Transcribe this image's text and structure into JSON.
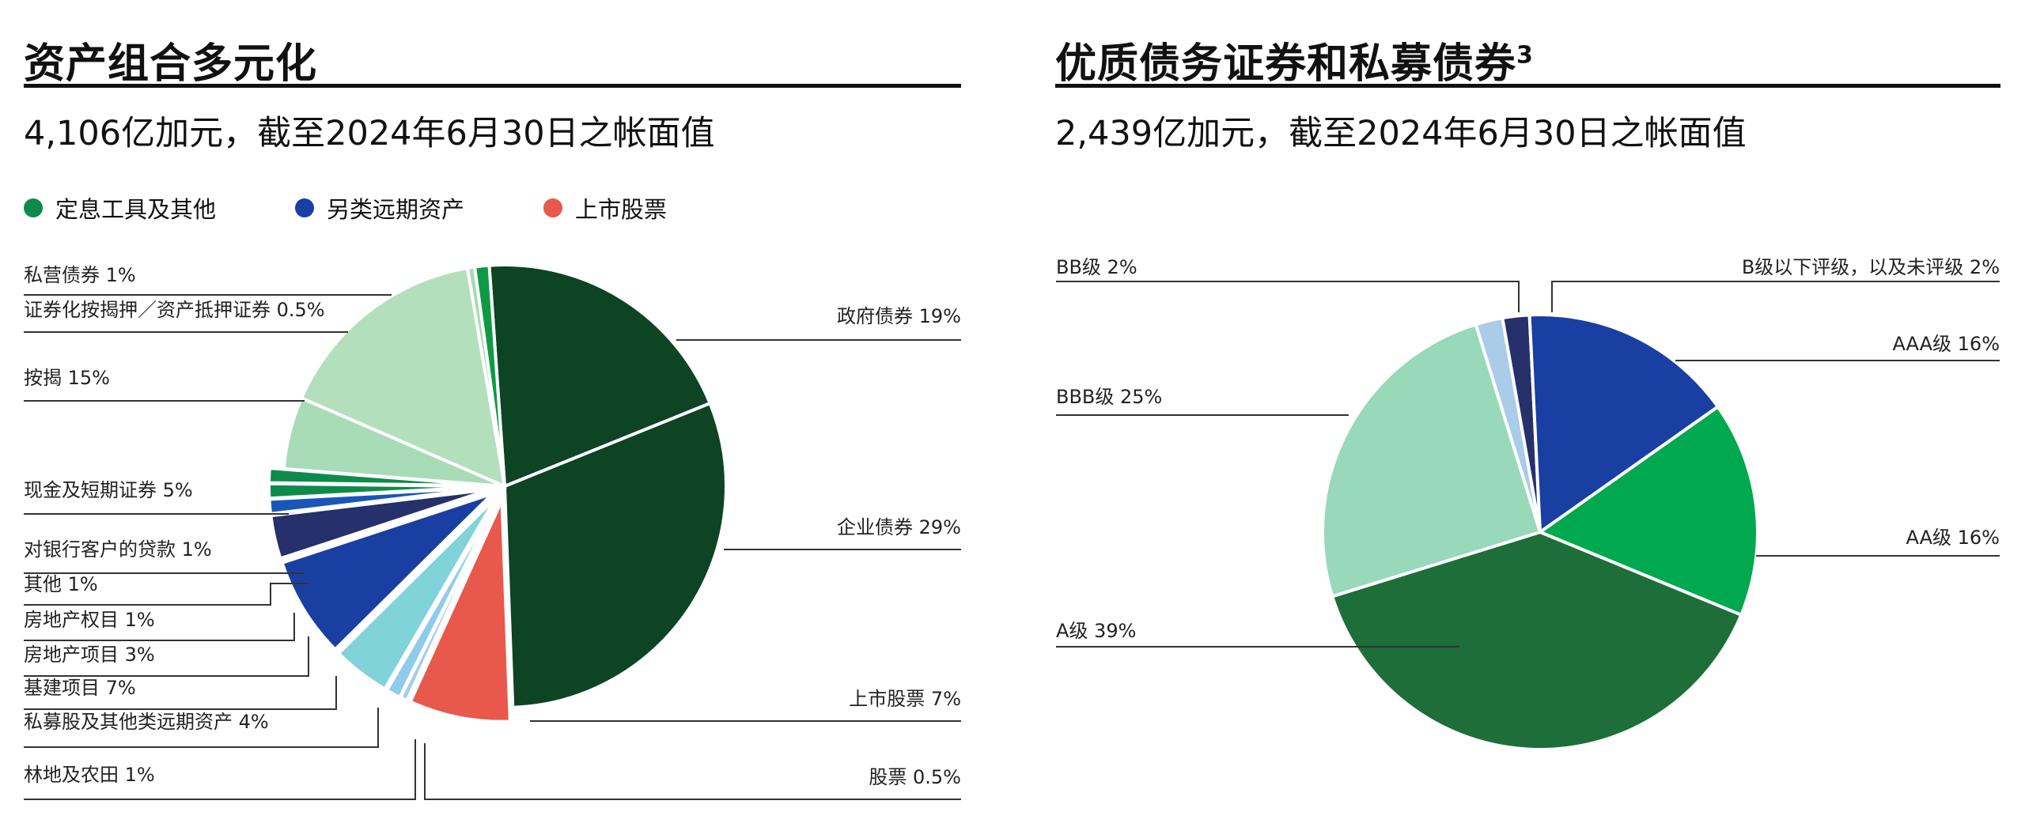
{
  "colors": {
    "legend_fixed_income": "#0e8a4a",
    "legend_alternative": "#1a3fa3",
    "legend_equities": "#e8584b"
  },
  "left": {
    "title": "资产组合多元化",
    "subtitle": "4,106亿加元，截至2024年6月30日之帐面值",
    "legend": [
      {
        "label": "定息工具及其他",
        "color": "#0e8a4a"
      },
      {
        "label": "另类远期资产",
        "color": "#1a3fa3"
      },
      {
        "label": "上市股票",
        "color": "#e8584b"
      }
    ]
  },
  "right": {
    "title": "优质债务证券和私募债券",
    "title_sup": "3",
    "subtitle": "2,439亿加元，截至2024年6月30日之帐面值"
  },
  "chart_data": [
    {
      "type": "pie",
      "title": "资产组合多元化",
      "slices": [
        {
          "label": "政府债券 19%",
          "value": 19,
          "color": "#0d4423"
        },
        {
          "label": "企业债券 29%",
          "value": 29,
          "color": "#0d4423"
        },
        {
          "label": "上市股票 7%",
          "value": 7,
          "color": "#e8584b"
        },
        {
          "label": "股票 0.5%",
          "value": 0.5,
          "color": "#a9cce8"
        },
        {
          "label": "林地及农田 1%",
          "value": 1,
          "color": "#8ecdea"
        },
        {
          "label": "私募股及其他类远期资产 4%",
          "value": 4,
          "color": "#7fd3d9"
        },
        {
          "label": "基建项目 7%",
          "value": 7,
          "color": "#1a3fa3"
        },
        {
          "label": "房地产项目 3%",
          "value": 3,
          "color": "#26306b"
        },
        {
          "label": "房地产权目 1%",
          "value": 1,
          "color": "#1a56b8"
        },
        {
          "label": "其他 1%",
          "value": 1,
          "color": "#0e8a4a"
        },
        {
          "label": "对银行客户的贷款 1%",
          "value": 1,
          "color": "#0e8a4a"
        },
        {
          "label": "现金及短期证券 5%",
          "value": 5,
          "color": "#a8dcb8"
        },
        {
          "label": "按揭 15%",
          "value": 15,
          "color": "#b4dfbd"
        },
        {
          "label": "证券化按揭押／资产抵押证券 0.5%",
          "value": 0.5,
          "color": "#a8d9b5"
        },
        {
          "label": "私营债券 1%",
          "value": 1,
          "color": "#0e9a45"
        }
      ],
      "annotations": [
        "政府债券 19%",
        "企业债券 29%",
        "上市股票 7%",
        "股票 0.5%",
        "私营债券 1%",
        "证券化按揭押／资产抵押证券 0.5%",
        "按揭 15%",
        "现金及短期证券 5%",
        "对银行客户的贷款 1%",
        "其他 1%",
        "房地产权目 1%",
        "房地产项目 3%",
        "基建项目 7%",
        "私募股及其他类远期资产 4%",
        "林地及农田 1%"
      ]
    },
    {
      "type": "pie",
      "title": "优质债务证券和私募债券",
      "slices": [
        {
          "label": "B级以下评级，以及未评级 2%",
          "value": 2,
          "color": "#26306b"
        },
        {
          "label": "AAA级 16%",
          "value": 16,
          "color": "#1a3fa3"
        },
        {
          "label": "AA级 16%",
          "value": 16,
          "color": "#00a84f"
        },
        {
          "label": "A级 39%",
          "value": 39,
          "color": "#1e6e3a"
        },
        {
          "label": "BBB级 25%",
          "value": 25,
          "color": "#97d9b8"
        },
        {
          "label": "BB级 2%",
          "value": 2,
          "color": "#a9cce8"
        }
      ],
      "annotations": [
        "BB级 2%",
        "B级以下评级，以及未评级 2%",
        "AAA级 16%",
        "BBB级 25%",
        "AA级 16%",
        "A级 39%"
      ]
    }
  ]
}
